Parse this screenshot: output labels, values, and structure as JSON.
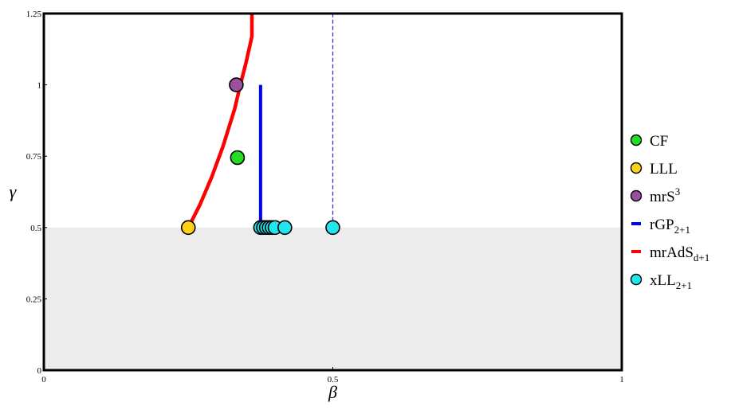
{
  "chart_data": {
    "type": "scatter",
    "xlabel": "β",
    "ylabel": "γ",
    "xlim": [
      0,
      1
    ],
    "ylim": [
      0,
      1.25
    ],
    "xticks": [
      {
        "value": 0,
        "label": "0"
      },
      {
        "value": 0.5,
        "label": "0.5"
      },
      {
        "value": 1,
        "label": "1"
      }
    ],
    "yticks": [
      {
        "value": 0,
        "label": "0"
      },
      {
        "value": 0.25,
        "label": "0.25"
      },
      {
        "value": 0.5,
        "label": "0.5"
      },
      {
        "value": 0.75,
        "label": "0.75"
      },
      {
        "value": 1,
        "label": "1"
      },
      {
        "value": 1.25,
        "label": "1.25"
      }
    ],
    "shaded_region": {
      "y_from": 0,
      "y_to": 0.5,
      "color": "#ececec"
    },
    "reference_line": {
      "x": 0.5,
      "y_from": 0.5,
      "y_to": 1.25,
      "style": "dashed",
      "color": "#3333cc"
    },
    "grid": false,
    "legend_position": "right",
    "series": [
      {
        "key": "mrAdS",
        "type": "line",
        "color": "#ff0000",
        "points": [
          [
            0.25,
            0.5
          ],
          [
            0.27,
            0.58
          ],
          [
            0.29,
            0.675
          ],
          [
            0.31,
            0.785
          ],
          [
            0.33,
            0.915
          ],
          [
            0.34,
            1.0
          ],
          [
            0.35,
            1.08
          ],
          [
            0.36,
            1.17
          ],
          [
            0.36,
            1.25
          ]
        ]
      },
      {
        "key": "rGP",
        "type": "line",
        "color": "#0000ff",
        "points": [
          [
            0.375,
            0.5
          ],
          [
            0.375,
            1.0
          ]
        ]
      },
      {
        "key": "CF",
        "type": "scatter",
        "color": "#22dd22",
        "points": [
          [
            0.335,
            0.745
          ]
        ]
      },
      {
        "key": "LLL",
        "type": "scatter",
        "color": "#ffd21a",
        "points": [
          [
            0.25,
            0.5
          ]
        ]
      },
      {
        "key": "mrS",
        "type": "scatter",
        "color": "#9b4f9f",
        "points": [
          [
            0.333,
            1.0
          ]
        ]
      },
      {
        "key": "xLL",
        "type": "scatter",
        "color": "#22e5ee",
        "points": [
          [
            0.375,
            0.5
          ],
          [
            0.38,
            0.5
          ],
          [
            0.385,
            0.5
          ],
          [
            0.39,
            0.5
          ],
          [
            0.395,
            0.5
          ],
          [
            0.4,
            0.5
          ],
          [
            0.417,
            0.5
          ],
          [
            0.5,
            0.5
          ]
        ]
      }
    ],
    "legend": [
      {
        "key": "CF",
        "marker": "circle",
        "color": "#22dd22",
        "text": "CF",
        "sub": "",
        "sup": ""
      },
      {
        "key": "LLL",
        "marker": "circle",
        "color": "#ffd21a",
        "text": "LLL",
        "sub": "",
        "sup": ""
      },
      {
        "key": "mrS",
        "marker": "circle",
        "color": "#9b4f9f",
        "text": "mrS",
        "sub": "",
        "sup": "3"
      },
      {
        "key": "rGP",
        "marker": "dash",
        "color": "#0000ff",
        "text": "rGP",
        "sub": "2+1",
        "sup": ""
      },
      {
        "key": "mrAdS",
        "marker": "dash",
        "color": "#ff0000",
        "text": "mrAdS",
        "sub": "d+1",
        "sup": ""
      },
      {
        "key": "xLL",
        "marker": "circle",
        "color": "#22e5ee",
        "text": "xLL",
        "sub": "2+1",
        "sup": ""
      }
    ]
  }
}
